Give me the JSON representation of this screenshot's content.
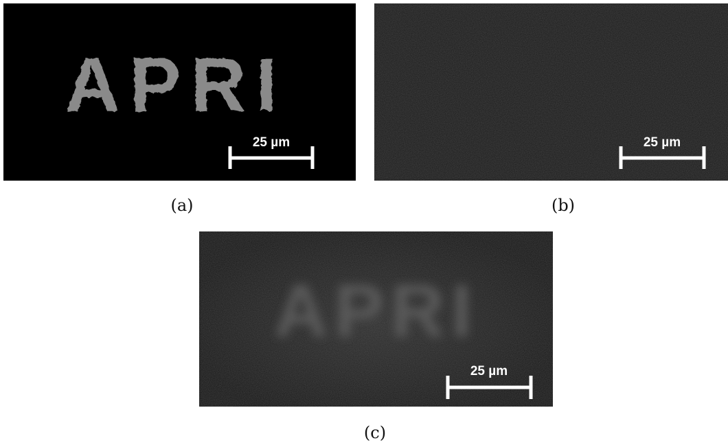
{
  "panels": [
    {
      "caption": "(a)",
      "image_text": "APRI",
      "scale_bar": "25 µm"
    },
    {
      "caption": "(b)",
      "scale_bar": "25 µm"
    },
    {
      "caption": "(c)",
      "image_text": "APRI",
      "scale_bar": "25 µm"
    }
  ]
}
